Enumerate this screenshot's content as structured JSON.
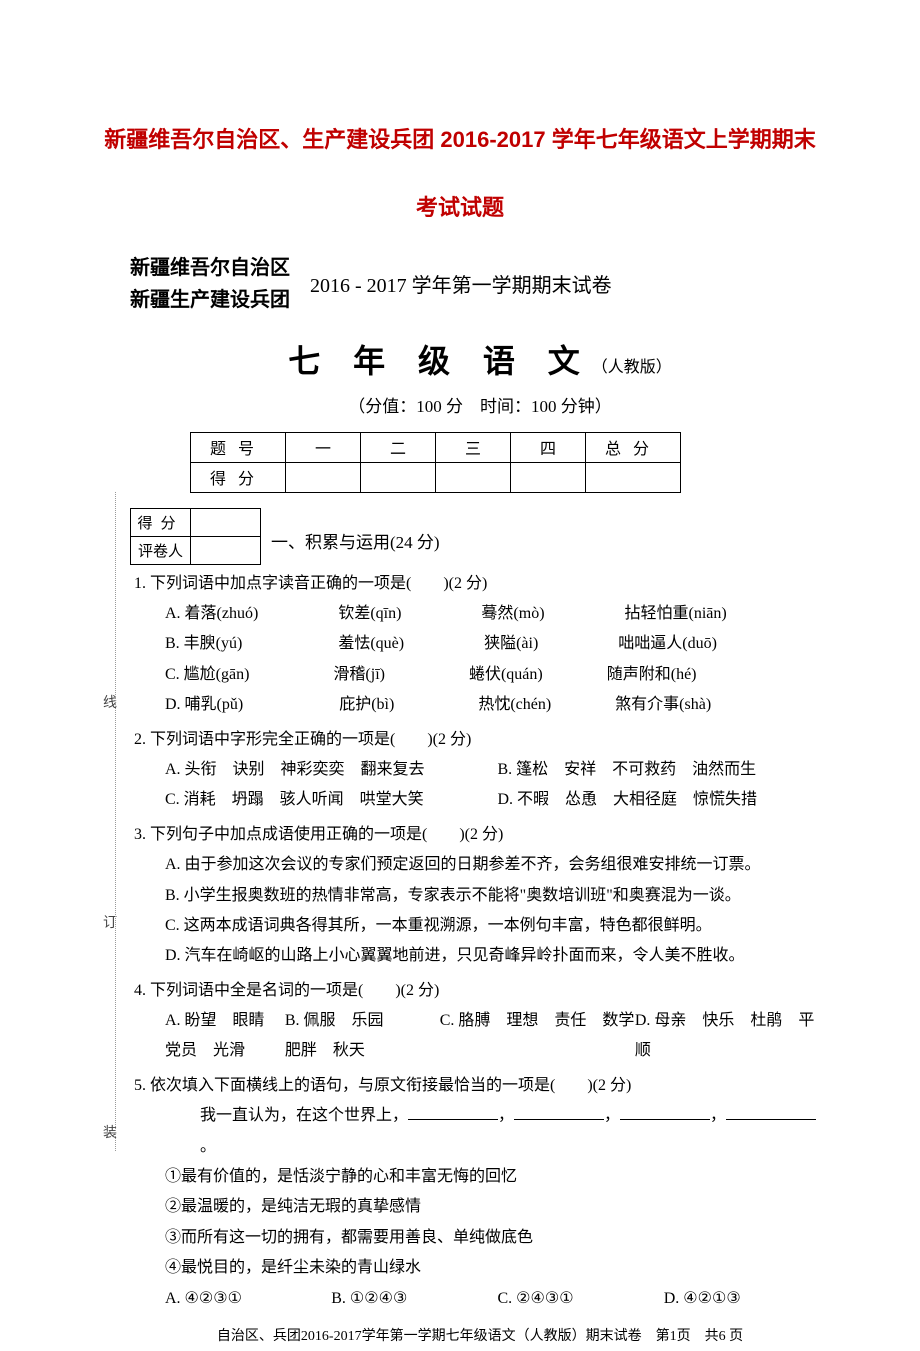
{
  "doc": {
    "title": "新疆维吾尔自治区、生产建设兵团 2016-2017 学年七年级语文上学期期末",
    "subtitle": "考试试题"
  },
  "header": {
    "org1": "新疆维吾尔自治区",
    "org2": "新疆生产建设兵团",
    "semester": "2016 - 2017 学年第一学期期末试卷"
  },
  "exam": {
    "title_big": "七 年 级 语 文",
    "title_small": "（人教版）",
    "meta": "（分值：100 分　时间：100 分钟）"
  },
  "score_table": {
    "rows": [
      "题号",
      "得分"
    ],
    "cols": [
      "一",
      "二",
      "三",
      "四"
    ],
    "total": "总分"
  },
  "mini_table": {
    "row1": "得分",
    "row2": "评卷人"
  },
  "section1": "一、积累与运用(24 分)",
  "questions": {
    "q1": {
      "stem": "1. 下列词语中加点字读音正确的一项是(　　)(2 分)",
      "A": "A. 着落(zhuó)　　　　　钦差(qīn)　　　　　蓦然(mò)　　　　　拈轻怕重(niān)",
      "B": "B. 丰腴(yú)　　　　　　羞怯(què)　　　　　狭隘(ài)　　　　　咄咄逼人(duō)",
      "C": "C. 尴尬(gān)　　　　　 滑稽(jī)　　　　　 蜷伏(quán)　　　　随声附和(hé)",
      "D": "D. 哺乳(pǔ)　　　　　　庇护(bì)　　　　　 热忱(chén)　　　　煞有介事(shà)"
    },
    "q2": {
      "stem": "2. 下列词语中字形完全正确的一项是(　　)(2 分)",
      "A": "A. 头衔　诀别　神彩奕奕　翻来复去",
      "B": "B. 篷松　安祥　不可救药　油然而生",
      "C": "C. 消耗　坍蹋　骇人听闻　哄堂大笑",
      "D": "D. 不暇　怂恿　大相径庭　惊慌失措"
    },
    "q3": {
      "stem": "3. 下列句子中加点成语使用正确的一项是(　　)(2 分)",
      "A": "A. 由于参加这次会议的专家们预定返回的日期参差不齐，会务组很难安排统一订票。",
      "B": "B. 小学生报奥数班的热情非常高，专家表示不能将\"奥数培训班\"和奥赛混为一谈。",
      "C": "C. 这两本成语词典各得其所，一本重视溯源，一本例句丰富，特色都很鲜明。",
      "D": "D. 汽车在崎岖的山路上小心翼翼地前进，只见奇峰异岭扑面而来，令人美不胜收。"
    },
    "q4": {
      "stem": "4. 下列词语中全是名词的一项是(　　)(2 分)",
      "A": "A. 盼望　眼睛　党员　光滑",
      "B": "B. 佩服　乐园　肥胖　秋天",
      "C": "C. 胳膊　理想　责任　数学",
      "D": "D. 母亲　快乐　杜鹃　平顺"
    },
    "q5": {
      "stem": "5. 依次填入下面横线上的语句，与原文衔接最恰当的一项是(　　)(2 分)",
      "intro": "我一直认为，在这个世界上，",
      "end": "。",
      "line1": "①最有价值的，是恬淡宁静的心和丰富无悔的回忆",
      "line2": "②最温暖的，是纯洁无瑕的真挚感情",
      "line3": "③而所有这一切的拥有，都需要用善良、单纯做底色",
      "line4": "④最悦目的，是纤尘未染的青山绿水",
      "A": "A. ④②③①",
      "B": "B. ①②④③",
      "C": "C. ②④③①",
      "D": "D. ④②①③"
    }
  },
  "margin": {
    "c1": "线",
    "c2": "订",
    "c3": "装"
  },
  "footer": "自治区、兵团2016-2017学年第一学期七年级语文（人教版）期末试卷　第1页　共6 页"
}
